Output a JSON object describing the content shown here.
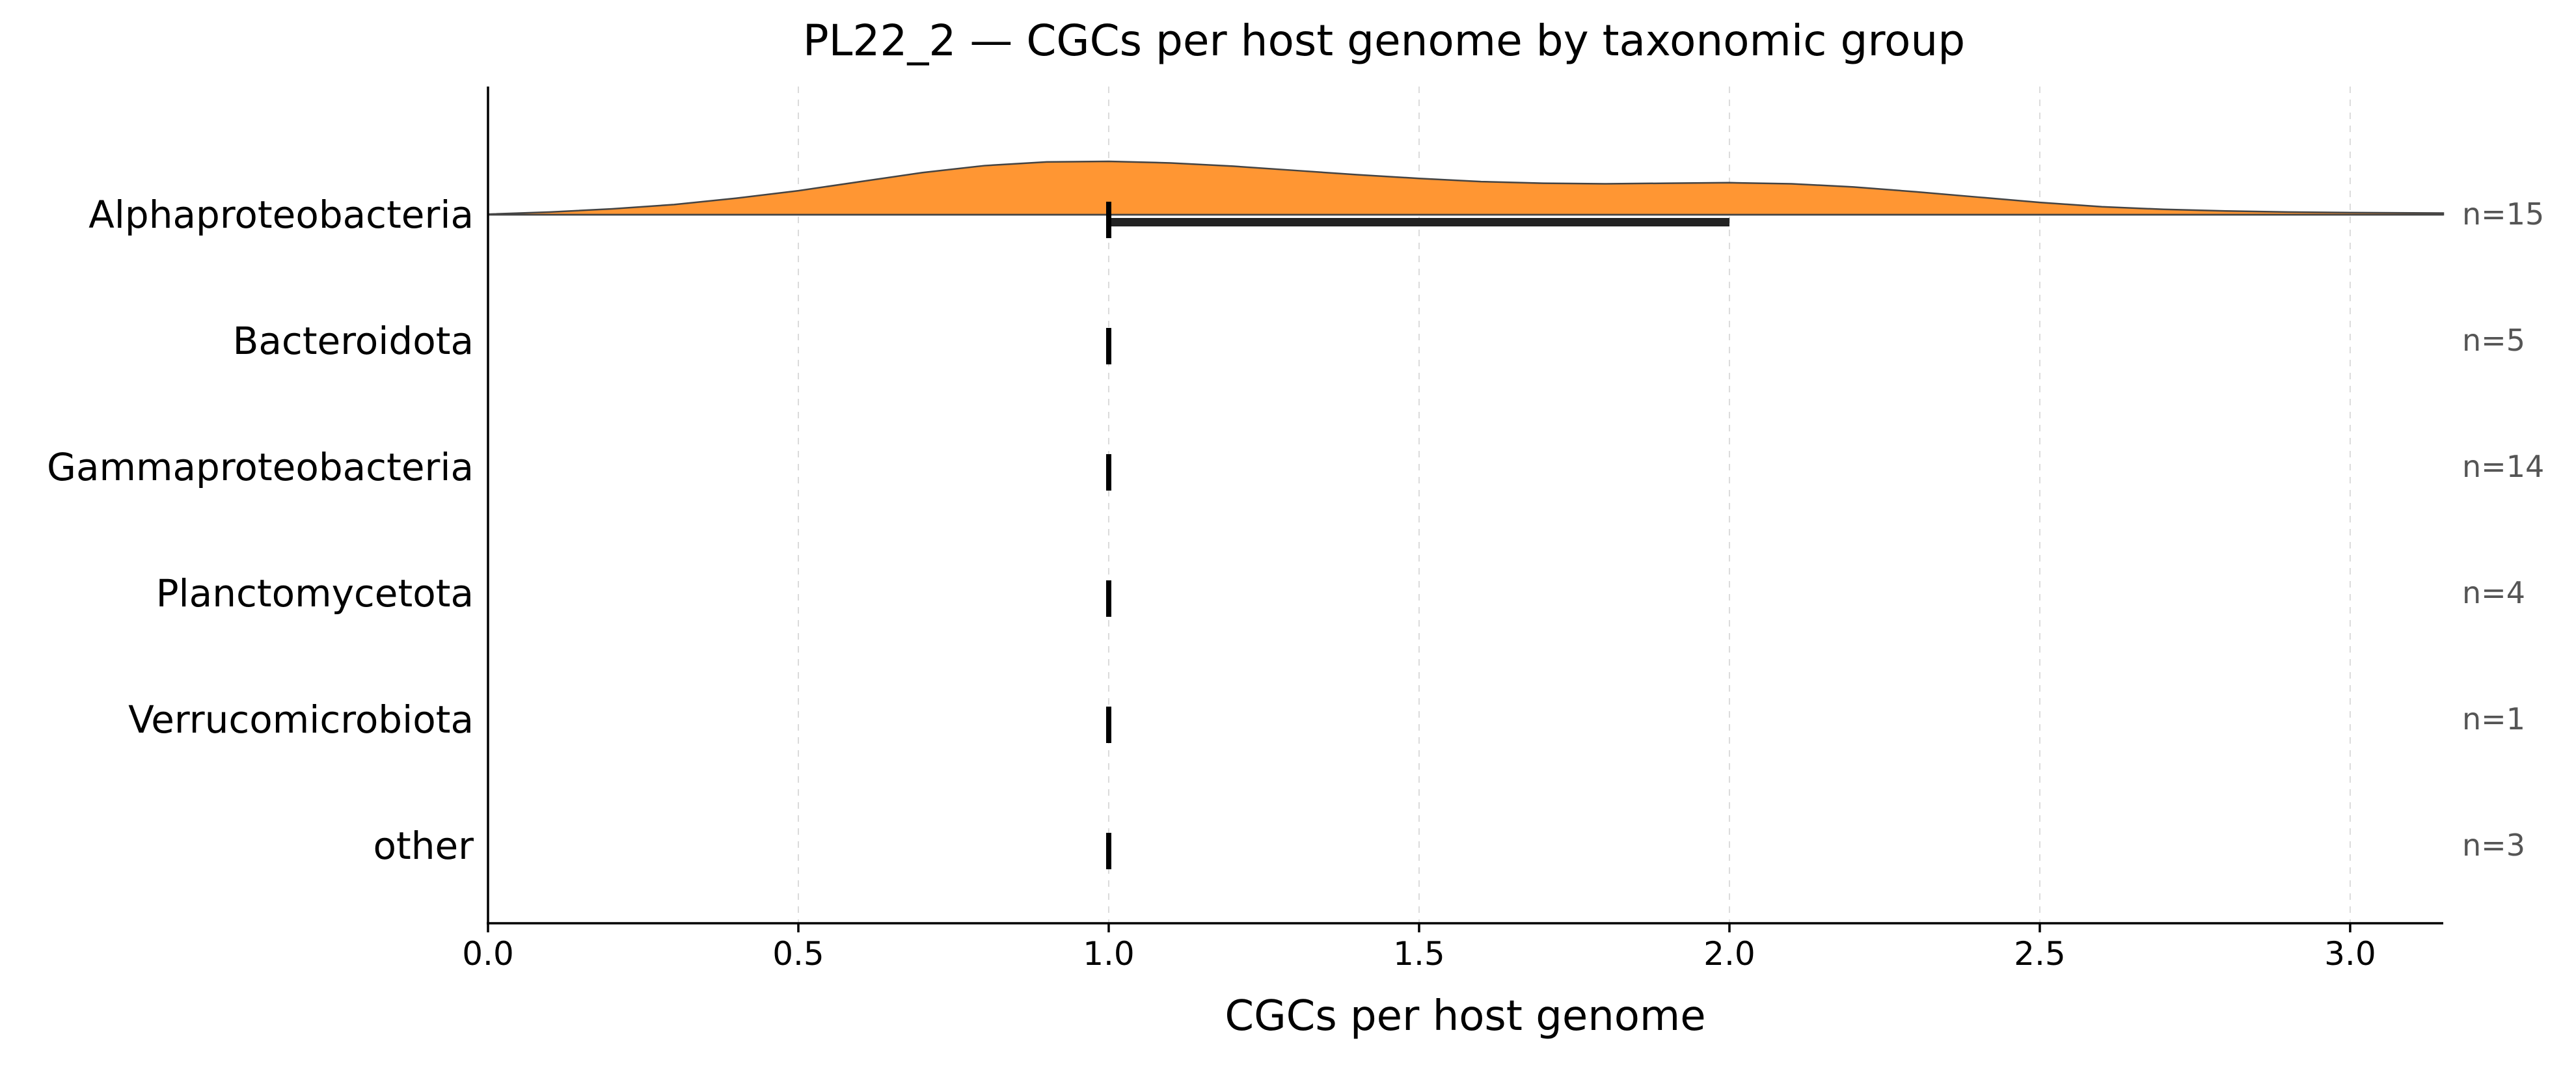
{
  "chart_data": {
    "type": "ridgeline",
    "title": "PL22_2 — CGCs per host genome by taxonomic group",
    "xlabel": "CGCs per host genome",
    "ylabel": "",
    "xlim": [
      0.0,
      3.15
    ],
    "x_ticks": [
      "0.0",
      "0.5",
      "1.0",
      "1.5",
      "2.0",
      "2.5",
      "3.0"
    ],
    "grid": "vertical dashed",
    "density_color": "#FF9633",
    "groups": [
      {
        "name": "Alphaproteobacteria",
        "n_label": "n=15",
        "median": 1.0,
        "iqr": [
          1.0,
          2.0
        ],
        "density": {
          "x": [
            0.0,
            0.1,
            0.2,
            0.3,
            0.4,
            0.5,
            0.6,
            0.7,
            0.8,
            0.9,
            1.0,
            1.1,
            1.2,
            1.3,
            1.4,
            1.5,
            1.6,
            1.7,
            1.8,
            1.9,
            2.0,
            2.1,
            2.2,
            2.3,
            2.4,
            2.5,
            2.6,
            2.7,
            2.8,
            2.9,
            3.0,
            3.15
          ],
          "y": [
            0.01,
            0.05,
            0.11,
            0.19,
            0.31,
            0.45,
            0.62,
            0.79,
            0.92,
            0.99,
            1.0,
            0.97,
            0.91,
            0.83,
            0.75,
            0.68,
            0.62,
            0.59,
            0.58,
            0.59,
            0.6,
            0.58,
            0.52,
            0.43,
            0.33,
            0.23,
            0.15,
            0.1,
            0.07,
            0.05,
            0.04,
            0.03
          ]
        }
      },
      {
        "name": "Bacteroidota",
        "n_label": "n=5",
        "median": 1.0
      },
      {
        "name": "Gammaproteobacteria",
        "n_label": "n=14",
        "median": 1.0
      },
      {
        "name": "Planctomycetota",
        "n_label": "n=4",
        "median": 1.0
      },
      {
        "name": "Verrucomicrobiota",
        "n_label": "n=1",
        "median": 1.0
      },
      {
        "name": "other",
        "n_label": "n=3",
        "median": 1.0
      }
    ]
  }
}
